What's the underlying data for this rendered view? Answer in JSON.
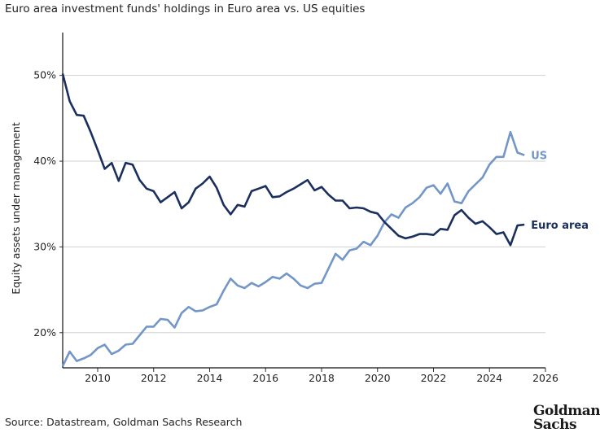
{
  "title": "Euro area investment funds' holdings in Euro area vs. US equities",
  "source": "Source: Datastream, Goldman Sachs Research",
  "logo": "Goldman Sachs",
  "chart_data": {
    "type": "line",
    "title": "Euro area investment funds' holdings in Euro area vs. US equities",
    "xlabel": "",
    "ylabel": "Equity assets under management",
    "xlim": [
      2008.75,
      2026
    ],
    "ylim": [
      15.9,
      55
    ],
    "grid": true,
    "legend": "inline labels at line ends",
    "x_ticks": [
      "2010",
      "2012",
      "2014",
      "2016",
      "2018",
      "2020",
      "2022",
      "2024",
      "2026"
    ],
    "y_ticks": [
      "20%",
      "30%",
      "40%",
      "50%"
    ],
    "x": [
      2008.75,
      2009,
      2009.25,
      2009.5,
      2009.75,
      2010,
      2010.25,
      2010.5,
      2010.75,
      2011,
      2011.25,
      2011.5,
      2011.75,
      2012,
      2012.25,
      2012.5,
      2012.75,
      2013,
      2013.25,
      2013.5,
      2013.75,
      2014,
      2014.25,
      2014.5,
      2014.75,
      2015,
      2015.25,
      2015.5,
      2015.75,
      2016,
      2016.25,
      2016.5,
      2016.75,
      2017,
      2017.25,
      2017.5,
      2017.75,
      2018,
      2018.25,
      2018.5,
      2018.75,
      2019,
      2019.25,
      2019.5,
      2019.75,
      2020,
      2020.25,
      2020.5,
      2020.75,
      2021,
      2021.25,
      2021.5,
      2021.75,
      2022,
      2022.25,
      2022.5,
      2022.75,
      2023,
      2023.25,
      2023.5,
      2023.75,
      2024,
      2024.25,
      2024.5,
      2024.75,
      2025,
      2025.25
    ],
    "series": [
      {
        "name": "US",
        "color": "#7396c8",
        "values": [
          16.1,
          17.8,
          16.7,
          17.0,
          17.4,
          18.2,
          18.6,
          17.5,
          17.9,
          18.6,
          18.7,
          19.7,
          20.7,
          20.7,
          21.6,
          21.5,
          20.6,
          22.3,
          23.0,
          22.5,
          22.6,
          23.0,
          23.3,
          24.9,
          26.3,
          25.5,
          25.2,
          25.8,
          25.4,
          25.9,
          26.5,
          26.3,
          26.9,
          26.3,
          25.5,
          25.2,
          25.7,
          25.8,
          27.5,
          29.2,
          28.5,
          29.6,
          29.8,
          30.6,
          30.2,
          31.3,
          32.9,
          33.8,
          33.4,
          34.6,
          35.1,
          35.8,
          36.9,
          37.2,
          36.2,
          37.4,
          35.3,
          35.1,
          36.5,
          37.3,
          38.1,
          39.6,
          40.5,
          40.5,
          43.4,
          41.0,
          40.7
        ]
      },
      {
        "name": "Euro area",
        "color": "#1a2f5e",
        "values": [
          50.2,
          47.0,
          45.4,
          45.3,
          43.4,
          41.3,
          39.1,
          39.8,
          37.7,
          39.8,
          39.6,
          37.8,
          36.8,
          36.5,
          35.2,
          35.8,
          36.4,
          34.5,
          35.2,
          36.8,
          37.4,
          38.2,
          36.9,
          34.9,
          33.8,
          34.9,
          34.7,
          36.5,
          36.8,
          37.1,
          35.8,
          35.9,
          36.4,
          36.8,
          37.3,
          37.8,
          36.6,
          37.0,
          36.1,
          35.4,
          35.4,
          34.5,
          34.6,
          34.5,
          34.1,
          33.9,
          32.9,
          32.1,
          31.3,
          31.0,
          31.2,
          31.5,
          31.5,
          31.4,
          32.1,
          32.0,
          33.7,
          34.3,
          33.4,
          32.7,
          33.0,
          32.3,
          31.5,
          31.7,
          30.2,
          32.5,
          32.6
        ]
      }
    ]
  }
}
